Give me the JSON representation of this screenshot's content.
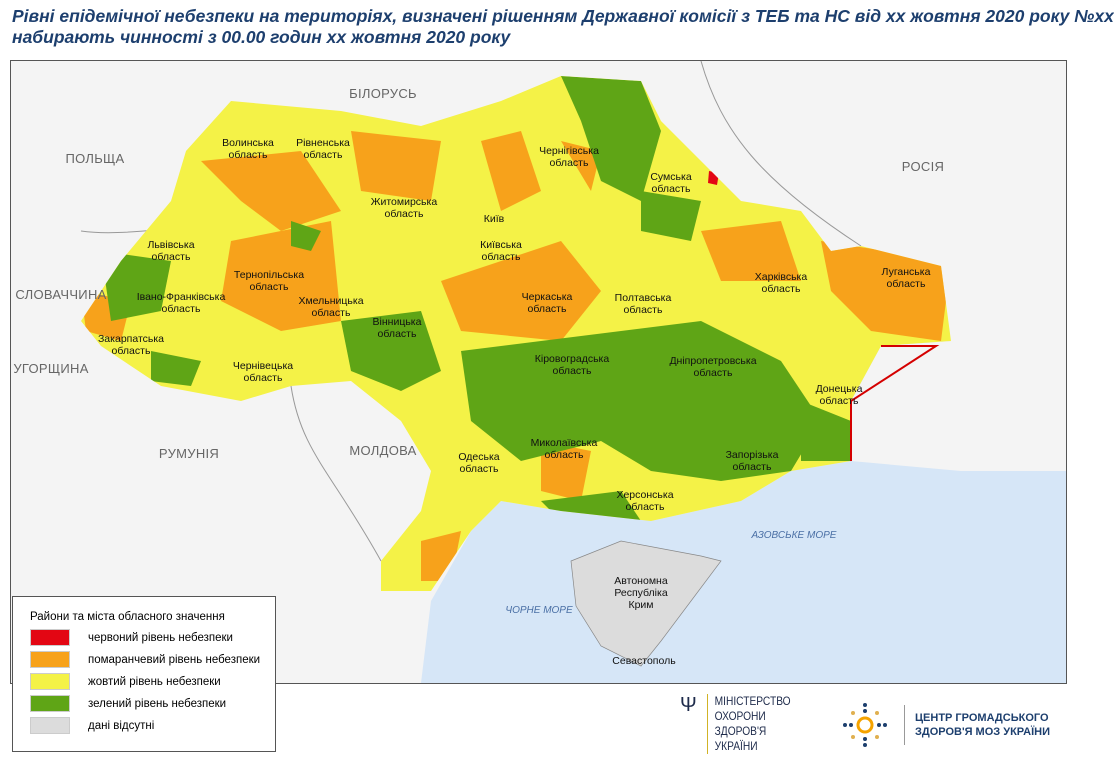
{
  "title": {
    "line1": "Рівні епідемічної небезпеки на територіях, визначені рішенням Державної комісії з ТЕБ та НС від хх жовтня 2020 року №хх",
    "line2": "набирають чинності з 00.00 годин хх жовтня 2020 року"
  },
  "countries": [
    "БІЛОРУСЬ",
    "ПОЛЬЩА",
    "РОСІЯ",
    "СЛОВАЧЧИНА",
    "УГОРЩИНА",
    "РУМУНІЯ",
    "МОЛДОВА"
  ],
  "seas": [
    "АЗОВСЬКЕ МОРЕ",
    "ЧОРНЕ МОРЕ"
  ],
  "regions": [
    "Волинська\nобласть",
    "Рівненська\nобласть",
    "Житомирська\nобласть",
    "Київ",
    "Київська\nобласть",
    "Чернігівська\nобласть",
    "Сумська\nобласть",
    "Львівська\nобласть",
    "Тернопільська\nобласть",
    "Хмельницька\nобласть",
    "Івано-Франківська\nобласть",
    "Закарпатська\nобласть",
    "Чернівецька\nобласть",
    "Вінницька\nобласть",
    "Черкаська\nобласть",
    "Полтавська\nобласть",
    "Харківська\nобласть",
    "Луганська\nобласть",
    "Кіровоградська\nобласть",
    "Дніпропетровська\nобласть",
    "Донецька\nобласть",
    "Одеська\nобласть",
    "Миколаївська\nобласть",
    "Запорізька\nобласть",
    "Херсонська\nобласть",
    "Автономна\nРеспубліка\nКрим",
    "Севастополь"
  ],
  "legend": {
    "title": "Райони та міста обласного значення",
    "items": [
      {
        "label": "червоний рівень небезпеки",
        "color": "#e30613"
      },
      {
        "label": "помаранчевий рівень небезпеки",
        "color": "#f7a21b"
      },
      {
        "label": "жовтий рівень небезпеки",
        "color": "#f4f247"
      },
      {
        "label": "зелений рівень небезпеки",
        "color": "#5fa516"
      },
      {
        "label": "дані відсутні",
        "color": "#dcdcdc"
      }
    ]
  },
  "logos": {
    "ministry": [
      "МІНІСТЕРСТВО",
      "ОХОРОНИ",
      "ЗДОРОВ'Я",
      "УКРАЇНИ"
    ],
    "center": [
      "ЦЕНТР ГРОМАДСЬКОГО",
      "ЗДОРОВ'Я МОЗ УКРАЇНИ"
    ]
  },
  "colors": {
    "title": "#1d3f6e",
    "sea": "#d6e6f7",
    "border_red": "#d40000"
  }
}
